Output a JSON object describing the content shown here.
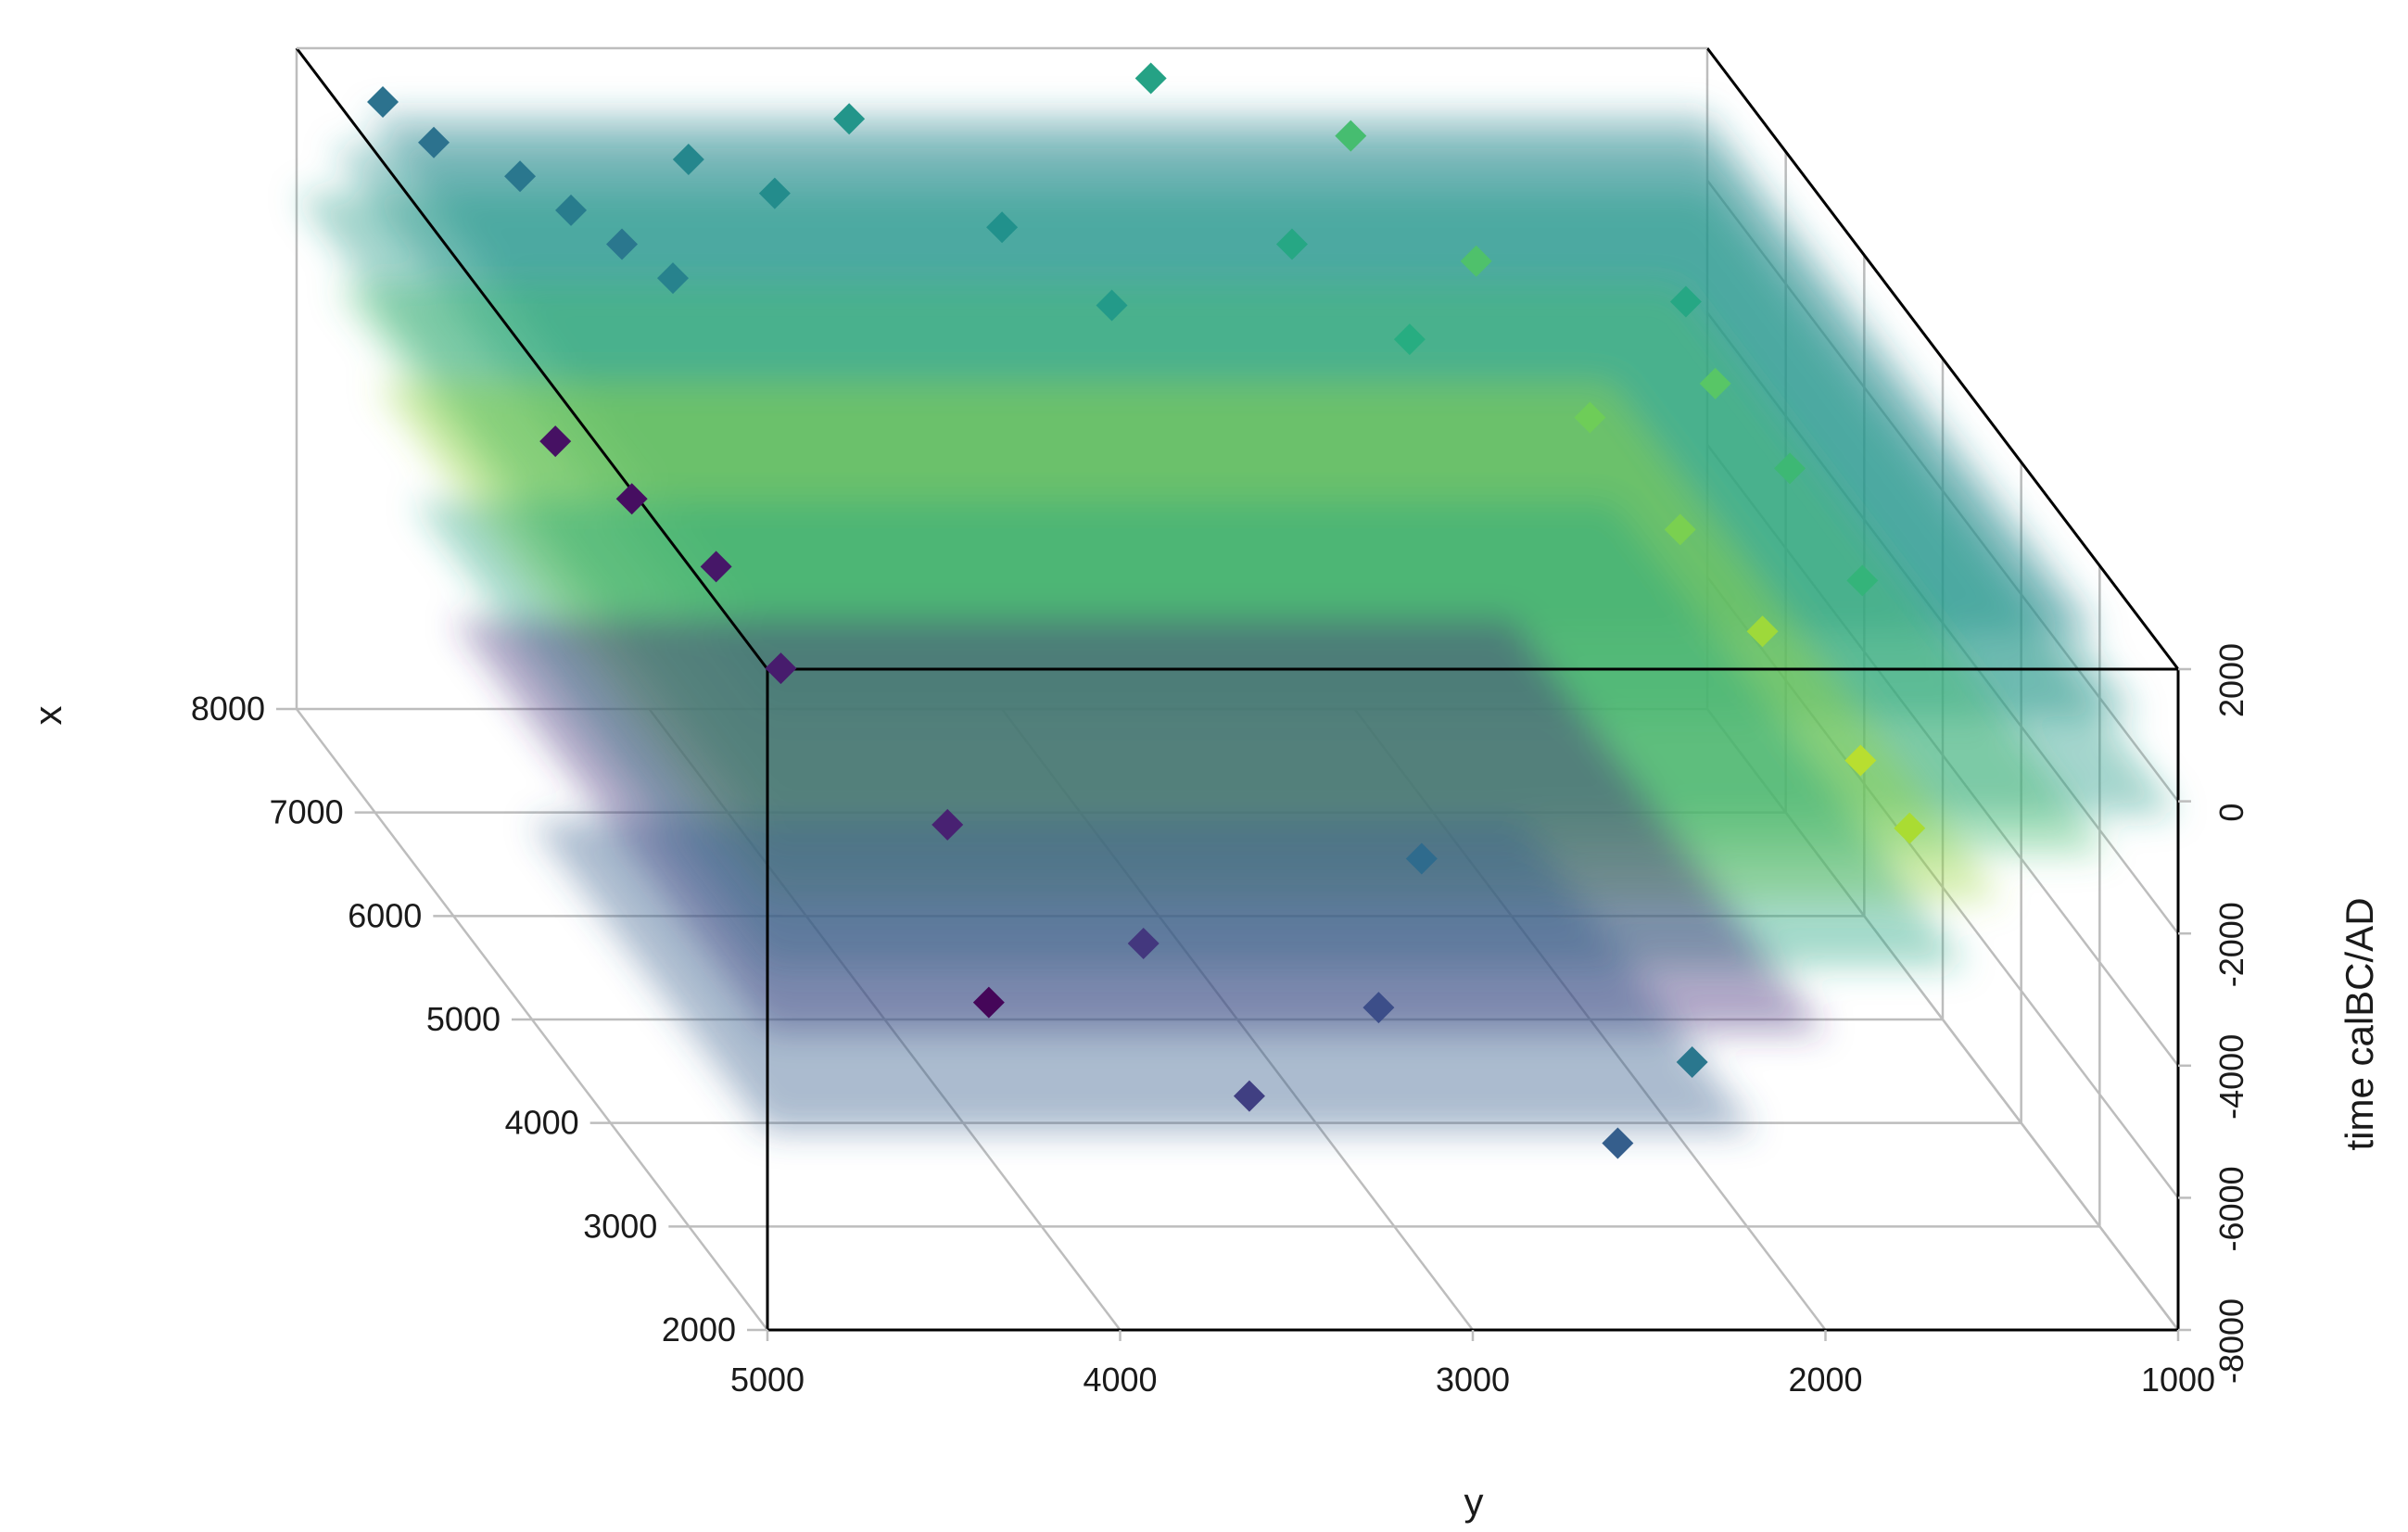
{
  "chart_data": {
    "type": "scatter",
    "subtype": "3d-perspective-space-time-cube",
    "title": "",
    "axes": {
      "x": {
        "label": "x",
        "ticks": [
          2000,
          3000,
          4000,
          5000,
          6000,
          7000,
          8000
        ],
        "range": [
          2000,
          8000
        ]
      },
      "y": {
        "label": "y",
        "ticks": [
          5000,
          4000,
          3000,
          2000,
          1000
        ],
        "range": [
          1000,
          5000
        ]
      },
      "z": {
        "label": "time calBC/AD",
        "ticks": [
          -8000,
          -6000,
          -4000,
          -2000,
          0,
          2000
        ],
        "range": [
          -8000,
          2000
        ]
      }
    },
    "grid": true,
    "colormap": "viridis",
    "colors": {
      "box_edge": "#000000",
      "grid_line": "#bdbdbd",
      "low": "#440154",
      "mid": "#21918c",
      "high": "#fde725"
    },
    "density_layers": [
      {
        "z": 1000,
        "x_range": [
          3000,
          8000
        ],
        "y_range": [
          1000,
          4800
        ],
        "value": 0.45
      },
      {
        "z": 500,
        "x_range": [
          2500,
          8000
        ],
        "y_range": [
          1000,
          4900
        ],
        "value": 0.5
      },
      {
        "z": -200,
        "x_range": [
          2000,
          8000
        ],
        "y_range": [
          1000,
          5000
        ],
        "value": 0.55
      },
      {
        "z": -800,
        "x_range": [
          2000,
          7500
        ],
        "y_range": [
          1200,
          5000
        ],
        "value": 0.7
      },
      {
        "z": -1500,
        "x_range": [
          2000,
          7000
        ],
        "y_range": [
          1500,
          5000
        ],
        "value": 0.85
      },
      {
        "z": -2500,
        "x_range": [
          2000,
          6500
        ],
        "y_range": [
          1600,
          5000
        ],
        "value": 0.6
      },
      {
        "z": -3500,
        "x_range": [
          2000,
          6000
        ],
        "y_range": [
          2000,
          5000
        ],
        "value": 0.15
      },
      {
        "z": -5000,
        "x_range": [
          2000,
          5000
        ],
        "y_range": [
          2200,
          5000
        ],
        "value": 0.3
      }
    ],
    "points": [
      {
        "x": 2100,
        "y": 4350,
        "z": -3200,
        "value": 0.02
      },
      {
        "x": 6200,
        "y": 4450,
        "z": -2000,
        "value": 0.05
      },
      {
        "x": 6500,
        "y": 4600,
        "z": -1600,
        "value": 0.06
      },
      {
        "x": 5800,
        "y": 4300,
        "z": -2400,
        "value": 0.08
      },
      {
        "x": 5200,
        "y": 4250,
        "z": -3000,
        "value": 0.1
      },
      {
        "x": 4200,
        "y": 4000,
        "z": -3800,
        "value": 0.12
      },
      {
        "x": 3500,
        "y": 3600,
        "z": -4500,
        "value": 0.18
      },
      {
        "x": 2600,
        "y": 3500,
        "z": -5400,
        "value": 0.2
      },
      {
        "x": 3200,
        "y": 3000,
        "z": -5000,
        "value": 0.24
      },
      {
        "x": 2400,
        "y": 2500,
        "z": -5800,
        "value": 0.3
      },
      {
        "x": 2800,
        "y": 2200,
        "z": -5200,
        "value": 0.4
      },
      {
        "x": 4000,
        "y": 2700,
        "z": -4000,
        "value": 0.35
      },
      {
        "x": 7800,
        "y": 4800,
        "z": 1500,
        "value": 0.38
      },
      {
        "x": 7600,
        "y": 4700,
        "z": 1200,
        "value": 0.38
      },
      {
        "x": 7400,
        "y": 4500,
        "z": 1000,
        "value": 0.4
      },
      {
        "x": 7200,
        "y": 4400,
        "z": 800,
        "value": 0.42
      },
      {
        "x": 7000,
        "y": 4300,
        "z": 600,
        "value": 0.4
      },
      {
        "x": 6800,
        "y": 4200,
        "z": 400,
        "value": 0.44
      },
      {
        "x": 7500,
        "y": 4000,
        "z": 1100,
        "value": 0.46
      },
      {
        "x": 7300,
        "y": 3800,
        "z": 900,
        "value": 0.48
      },
      {
        "x": 7700,
        "y": 3500,
        "z": 1400,
        "value": 0.52
      },
      {
        "x": 7100,
        "y": 3200,
        "z": 700,
        "value": 0.5
      },
      {
        "x": 6600,
        "y": 3000,
        "z": 300,
        "value": 0.54
      },
      {
        "x": 7900,
        "y": 2600,
        "z": 1700,
        "value": 0.58
      },
      {
        "x": 7000,
        "y": 2400,
        "z": 600,
        "value": 0.6
      },
      {
        "x": 6400,
        "y": 2200,
        "z": 100,
        "value": 0.63
      },
      {
        "x": 7600,
        "y": 2100,
        "z": 1300,
        "value": 0.7
      },
      {
        "x": 6900,
        "y": 1900,
        "z": 500,
        "value": 0.72
      },
      {
        "x": 5900,
        "y": 1800,
        "z": -300,
        "value": 0.78
      },
      {
        "x": 5200,
        "y": 1700,
        "z": -900,
        "value": 0.8
      },
      {
        "x": 4600,
        "y": 1600,
        "z": -1500,
        "value": 0.86
      },
      {
        "x": 3800,
        "y": 1500,
        "z": -2200,
        "value": 0.9
      },
      {
        "x": 3400,
        "y": 1450,
        "z": -2600,
        "value": 0.88
      },
      {
        "x": 6100,
        "y": 1400,
        "z": -100,
        "value": 0.74
      },
      {
        "x": 5600,
        "y": 1300,
        "z": -600,
        "value": 0.68
      },
      {
        "x": 4900,
        "y": 1250,
        "z": -1200,
        "value": 0.66
      },
      {
        "x": 6700,
        "y": 1350,
        "z": 200,
        "value": 0.6
      }
    ]
  }
}
